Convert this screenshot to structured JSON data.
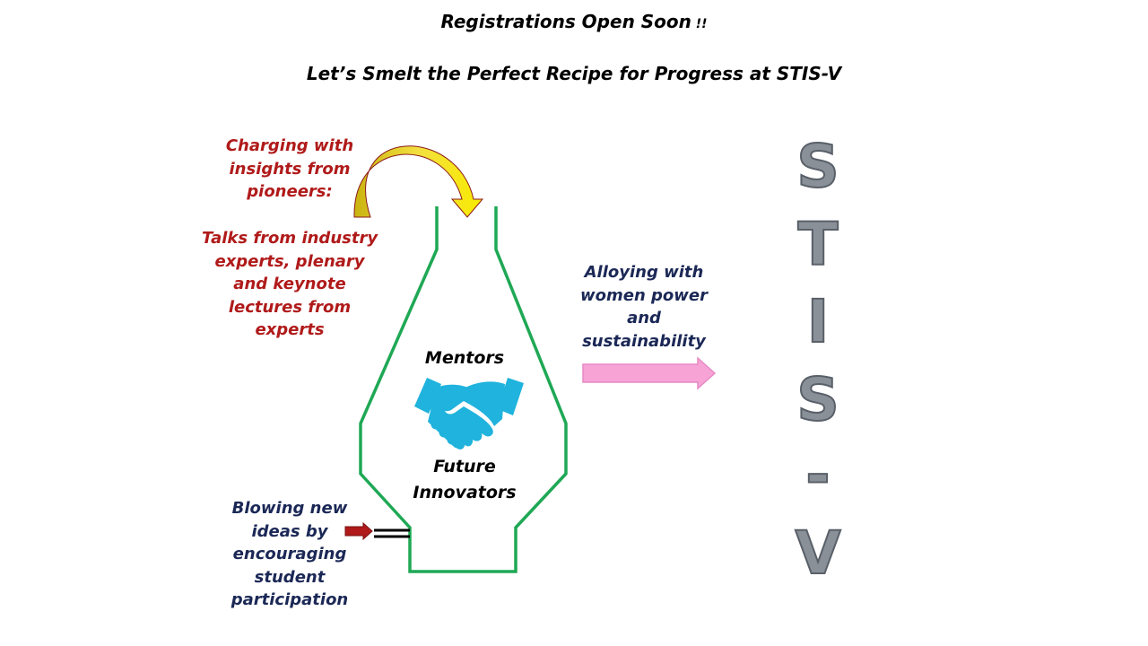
{
  "header": {
    "line1": "Registrations Open Soon",
    "line1_suffix": " !!",
    "line2": "Let’s Smelt the Perfect Recipe for Progress at STIS-V"
  },
  "left_top": {
    "charging_lines": [
      "Charging with",
      "insights from",
      "pioneers:"
    ],
    "talks_lines": [
      "Talks from industry",
      "experts, plenary",
      "and keynote",
      "lectures from",
      "experts"
    ]
  },
  "furnace": {
    "top_label": "Mentors",
    "bottom_lines": [
      "Future",
      "Innovators"
    ],
    "icon": "handshake-icon"
  },
  "right_side": {
    "alloying_lines": [
      "Alloying with",
      "women power",
      "and",
      "sustainability"
    ]
  },
  "bottom_left": {
    "blowing_lines": [
      "Blowing new",
      "ideas by",
      "encouraging",
      "student",
      "participation"
    ]
  },
  "stis_letters": [
    "S",
    "T",
    "I",
    "S",
    "-",
    "V"
  ],
  "colors": {
    "furnace_outline": "#1fa855",
    "red_text": "#b01a1a",
    "navy_text": "#1b2856",
    "pink_arrow": "#f7a3d6",
    "yellow_arrow": "#e8d31a",
    "handshake": "#1fb3dd",
    "small_arrow": "#b01a1a"
  }
}
